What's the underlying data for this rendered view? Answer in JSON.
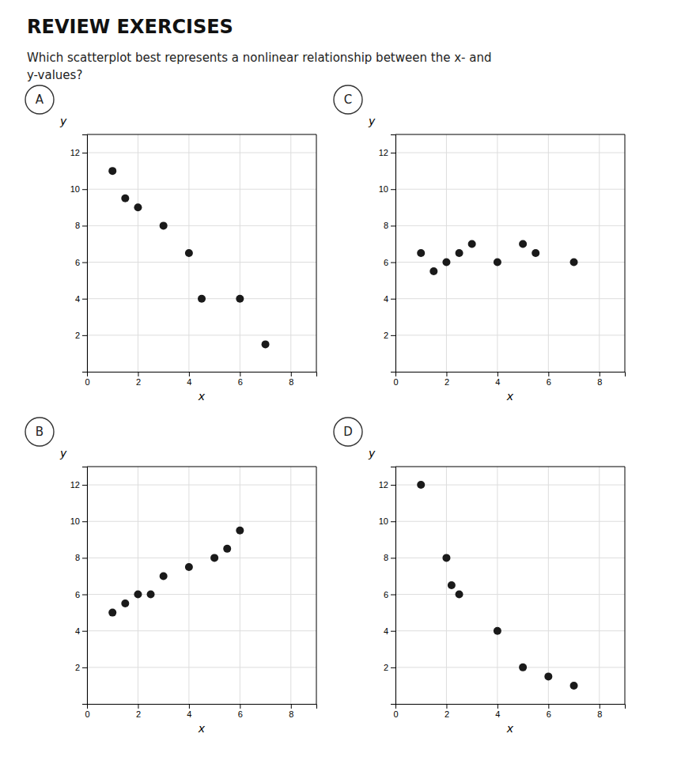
{
  "chart_data": [
    {
      "type": "scatter",
      "title": "REVIEW EXERCISES",
      "subtitle": [
        "Which scatterplot best represents a nonlinear relationship between the x- and",
        "y-values?"
      ],
      "label": "A",
      "xlabel": "x",
      "ylabel": "y",
      "color": "#1a1a1a",
      "grid": true,
      "x": [
        1,
        1.5,
        2,
        3,
        4,
        4.5,
        6,
        7
      ],
      "y": [
        11,
        9.5,
        9,
        8,
        6.5,
        4,
        4,
        1.5
      ],
      "xlim": [
        0,
        9
      ],
      "ylim": [
        0,
        13
      ],
      "xticks": [
        0,
        2,
        4,
        6,
        8
      ],
      "yticks": [
        2,
        4,
        6,
        8,
        10,
        12
      ]
    },
    {
      "type": "scatter",
      "label": "C",
      "xlabel": "x",
      "ylabel": "y",
      "color": "#1a1a1a",
      "grid": true,
      "x": [
        1,
        1.5,
        2,
        2.5,
        3,
        4,
        5,
        5.5,
        7
      ],
      "y": [
        6.5,
        5.5,
        6,
        6.5,
        7,
        6,
        7,
        6.5,
        6
      ],
      "xlim": [
        0,
        9
      ],
      "ylim": [
        0,
        13
      ],
      "xticks": [
        0,
        2,
        4,
        6,
        8
      ],
      "yticks": [
        2,
        4,
        6,
        8,
        10,
        12
      ]
    },
    {
      "type": "scatter",
      "label": "B",
      "xlabel": "x",
      "ylabel": "y",
      "color": "#1a1a1a",
      "grid": true,
      "x": [
        1,
        1.5,
        2,
        2.5,
        3,
        4,
        5,
        5.5,
        6
      ],
      "y": [
        5,
        5.5,
        6,
        6,
        7,
        7.5,
        8,
        8.5,
        9.5
      ],
      "xlim": [
        0,
        9
      ],
      "ylim": [
        0,
        13
      ],
      "xticks": [
        0,
        2,
        4,
        6,
        8
      ],
      "yticks": [
        2,
        4,
        6,
        8,
        10,
        12
      ]
    },
    {
      "type": "scatter",
      "label": "D",
      "xlabel": "x",
      "ylabel": "y",
      "color": "#1a1a1a",
      "grid": true,
      "x": [
        1,
        2,
        2.2,
        2.5,
        4,
        5,
        6,
        7
      ],
      "y": [
        12,
        8,
        6.5,
        6,
        4,
        2,
        1.5,
        1
      ],
      "xlim": [
        0,
        9
      ],
      "ylim": [
        0,
        13
      ],
      "xticks": [
        0,
        2,
        4,
        6,
        8
      ],
      "yticks": [
        2,
        4,
        6,
        8,
        10,
        12
      ]
    }
  ]
}
